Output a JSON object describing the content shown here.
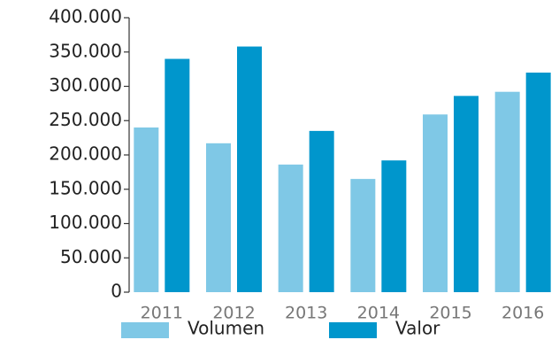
{
  "chart_data": {
    "type": "bar",
    "categories": [
      "2011",
      "2012",
      "2013",
      "2014",
      "2015",
      "2016"
    ],
    "series": [
      {
        "name": "Volumen",
        "color": "#7fc8e6",
        "values": [
          240000,
          217000,
          186000,
          165000,
          259000,
          292000
        ]
      },
      {
        "name": "Valor",
        "color": "#0096cc",
        "values": [
          340000,
          358000,
          235000,
          192000,
          286000,
          320000
        ]
      }
    ],
    "ylim": [
      0,
      400000
    ],
    "yticks": [
      0,
      {
        "value": 50000,
        "label": "50.000"
      },
      {
        "value": 100000,
        "label": "100.000"
      },
      {
        "value": 150000,
        "label": "150.000"
      },
      {
        "value": 200000,
        "label": "200.000"
      },
      {
        "value": 250000,
        "label": "250.000"
      },
      {
        "value": 300000,
        "label": "300.000"
      },
      {
        "value": 350000,
        "label": "350.000"
      },
      {
        "value": 400000,
        "label": "400.000"
      }
    ],
    "legend": "bottom"
  }
}
